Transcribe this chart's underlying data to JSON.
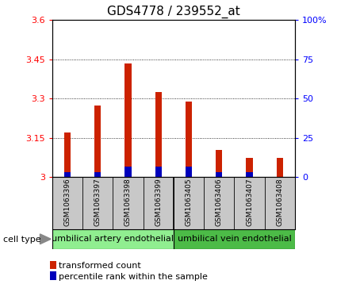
{
  "title": "GDS4778 / 239552_at",
  "samples": [
    "GSM1063396",
    "GSM1063397",
    "GSM1063398",
    "GSM1063399",
    "GSM1063405",
    "GSM1063406",
    "GSM1063407",
    "GSM1063408"
  ],
  "red_values": [
    3.17,
    3.275,
    3.435,
    3.325,
    3.29,
    3.105,
    3.075,
    3.075
  ],
  "blue_values": [
    3.02,
    3.02,
    3.04,
    3.04,
    3.04,
    3.02,
    3.02,
    3.0
  ],
  "base": 3.0,
  "ylim": [
    3.0,
    3.6
  ],
  "yticks": [
    3.0,
    3.15,
    3.3,
    3.45,
    3.6
  ],
  "ytick_labels": [
    "3",
    "3.15",
    "3.3",
    "3.45",
    "3.6"
  ],
  "right_yticks": [
    0.0,
    0.25,
    0.5,
    0.75,
    1.0
  ],
  "right_ytick_labels": [
    "0",
    "25",
    "50",
    "75",
    "100%"
  ],
  "groups": [
    {
      "label": "umbilical artery endothelial",
      "start": 0,
      "end": 4,
      "color": "#90EE90"
    },
    {
      "label": "umbilical vein endothelial",
      "start": 4,
      "end": 8,
      "color": "#4CBB47"
    }
  ],
  "cell_type_label": "cell type",
  "legend_red": "transformed count",
  "legend_blue": "percentile rank within the sample",
  "red_color": "#CC2200",
  "blue_color": "#0000BB",
  "bg_color": "#C8C8C8",
  "plot_bg": "#FFFFFF",
  "title_fontsize": 11,
  "tick_fontsize": 8,
  "sample_fontsize": 6.5,
  "group_fontsize": 8,
  "legend_fontsize": 8
}
